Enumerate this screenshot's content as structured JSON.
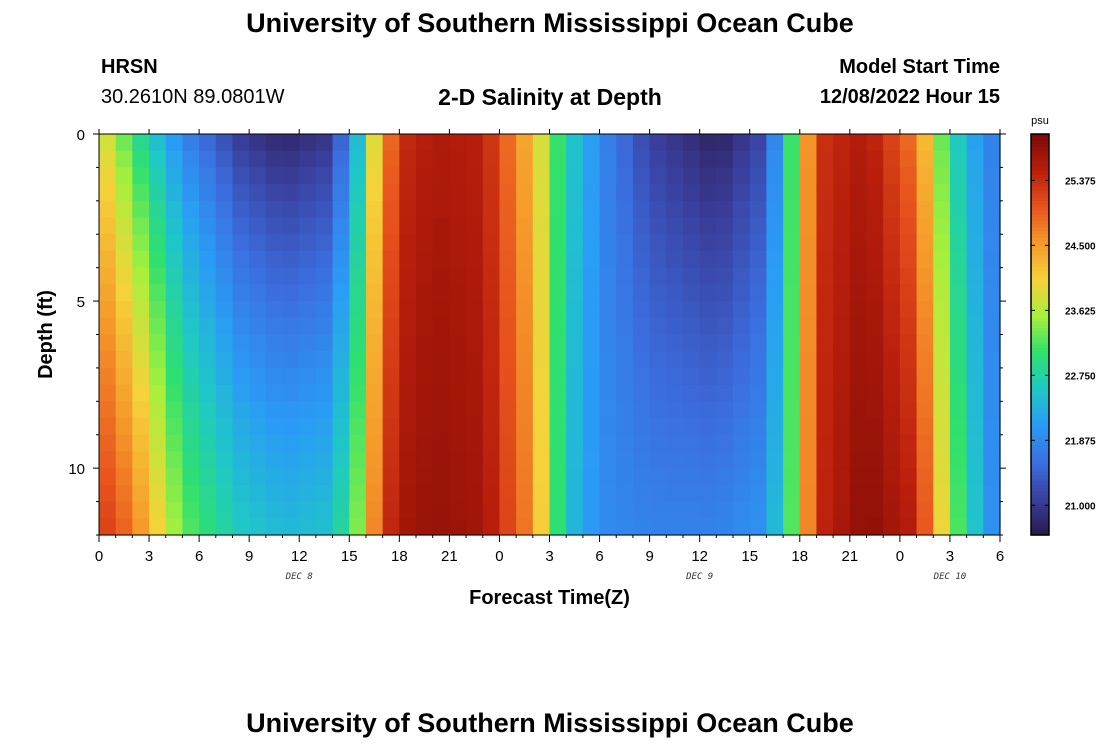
{
  "page": {
    "title_top": "University of Southern Mississippi Ocean Cube",
    "title_bottom": "University of Southern Mississippi Ocean Cube",
    "station_name": "HRSN",
    "station_coords": "30.2610N  89.0801W",
    "plot_title": "2-D Salinity at Depth",
    "model_start_label": "Model Start Time",
    "model_start_value": "12/08/2022 Hour 15"
  },
  "colors": {
    "scale": [
      "#2a1a4a",
      "#3a3f9e",
      "#3b6fe0",
      "#2a9cf5",
      "#1fc8c6",
      "#2fe06e",
      "#a6f03c",
      "#f5d23a",
      "#f59a2a",
      "#e8531d",
      "#b91e0c",
      "#7d0a05"
    ]
  },
  "chart_data": {
    "type": "heatmap",
    "title": "2-D Salinity at Depth",
    "xlabel": "Forecast Time(Z)",
    "ylabel": "Depth (ft)",
    "x_ticks": [
      "0",
      "3",
      "6",
      "9",
      "12",
      "15",
      "18",
      "21",
      "0",
      "3",
      "6",
      "9",
      "12",
      "15",
      "18",
      "21",
      "0",
      "3",
      "6"
    ],
    "x_hours": [
      0,
      3,
      6,
      9,
      12,
      15,
      18,
      21,
      24,
      27,
      30,
      33,
      36,
      39,
      42,
      45,
      48,
      51,
      54
    ],
    "date_labels": [
      {
        "text": "DEC 8",
        "hour": 12
      },
      {
        "text": "DEC 9",
        "hour": 36
      },
      {
        "text": "DEC 10",
        "hour": 51
      }
    ],
    "y_ticks": [
      "0",
      "5",
      "10"
    ],
    "y_tick_values": [
      0,
      5,
      10
    ],
    "ylim": [
      0,
      12
    ],
    "xlim": [
      0,
      54
    ],
    "z_unit": "psu",
    "zlim": [
      20.6,
      26.0
    ],
    "colorbar_ticks": [
      "25.375",
      "24.500",
      "23.625",
      "22.750",
      "21.875",
      "21.000"
    ],
    "colorbar_values": [
      25.375,
      24.5,
      23.625,
      22.75,
      21.875,
      21.0
    ],
    "field": {
      "time_keyframes_hours": [
        0,
        2,
        5,
        8.5,
        11,
        14,
        15.5,
        17,
        18.5,
        20,
        23,
        26,
        28,
        30,
        33,
        37,
        40,
        41.5,
        43,
        46,
        49,
        51,
        53,
        54
      ],
      "surface_psu": [
        24.0,
        23.0,
        21.8,
        21.0,
        20.75,
        20.95,
        22.4,
        24.6,
        25.4,
        25.6,
        25.5,
        24.2,
        22.7,
        21.9,
        21.1,
        20.7,
        21.2,
        23.1,
        25.3,
        25.6,
        24.7,
        22.8,
        21.9,
        21.7
      ],
      "bottom_psu": [
        25.3,
        24.8,
        23.3,
        22.6,
        22.4,
        22.5,
        23.4,
        25.3,
        25.7,
        25.8,
        25.7,
        24.6,
        22.5,
        21.9,
        21.8,
        21.8,
        22.0,
        23.2,
        25.4,
        25.9,
        25.5,
        23.5,
        22.2,
        21.7
      ],
      "depth_levels": 24,
      "time_steps": 54
    }
  }
}
